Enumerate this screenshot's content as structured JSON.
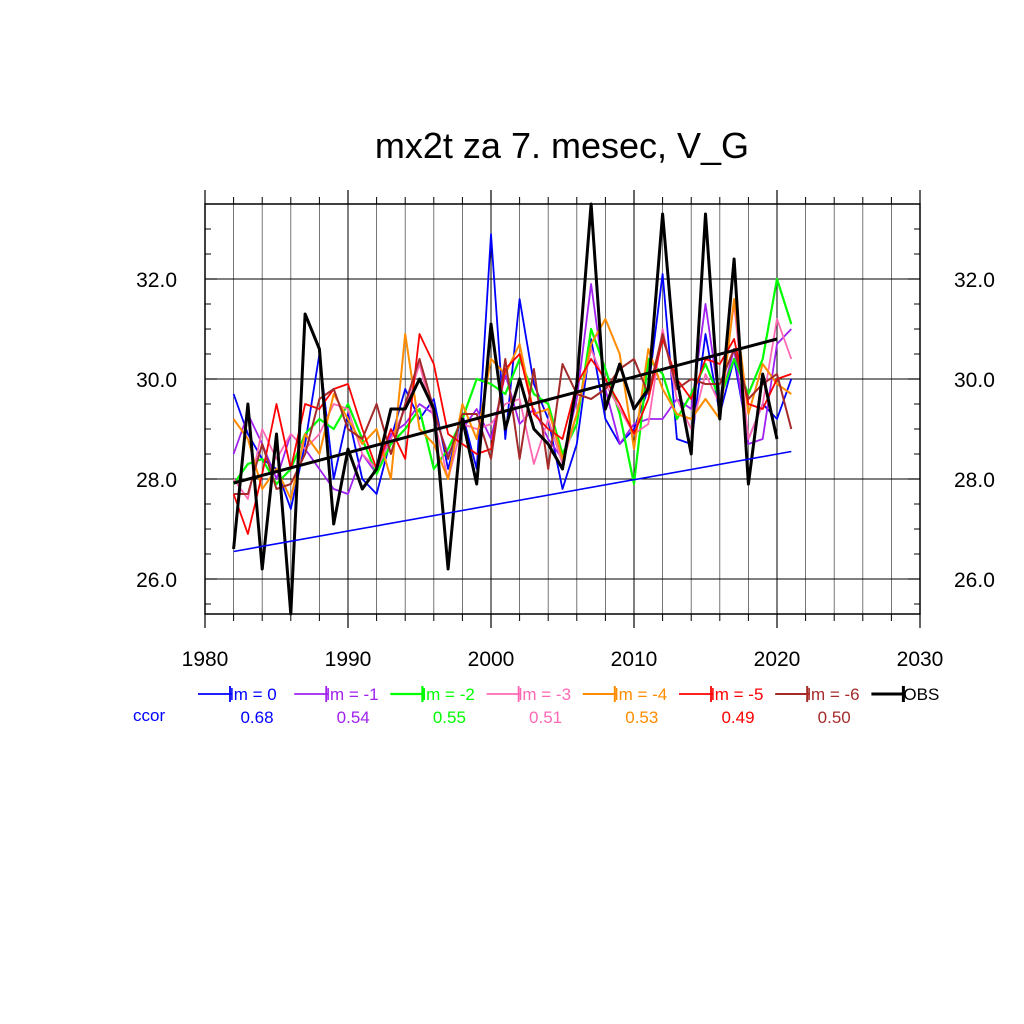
{
  "chart_data": {
    "type": "line",
    "title": "mx2t za 7. mesec, V_G",
    "xlabel": "",
    "ylabel": "",
    "xlim": [
      1980,
      2030
    ],
    "ylim": [
      25.3,
      33.5
    ],
    "x_ticks": [
      "1980",
      "1990",
      "2000",
      "2010",
      "2020",
      "2030"
    ],
    "y_ticks": [
      "26.0",
      "28.0",
      "30.0",
      "32.0"
    ],
    "grid": true,
    "legend_position": "bottom",
    "ccor_label": "ccor",
    "x": [
      1982,
      1983,
      1984,
      1985,
      1986,
      1987,
      1988,
      1989,
      1990,
      1991,
      1992,
      1993,
      1994,
      1995,
      1996,
      1997,
      1998,
      1999,
      2000,
      2001,
      2002,
      2003,
      2004,
      2005,
      2006,
      2007,
      2008,
      2009,
      2010,
      2011,
      2012,
      2013,
      2014,
      2015,
      2016,
      2017,
      2018,
      2019,
      2020,
      2021
    ],
    "series": [
      {
        "name": "lm = 0",
        "color": "#0000ff",
        "ccor": "0.68",
        "width": 1.8,
        "values": [
          29.7,
          28.9,
          28.4,
          28.2,
          27.4,
          28.7,
          30.5,
          28.0,
          29.3,
          28.0,
          27.7,
          28.8,
          29.8,
          29.2,
          29.6,
          28.2,
          29.3,
          28.2,
          32.9,
          28.8,
          31.6,
          29.9,
          29.2,
          27.8,
          28.7,
          30.8,
          29.2,
          28.7,
          29.0,
          29.8,
          32.1,
          28.8,
          28.7,
          30.9,
          29.3,
          30.4,
          28.8,
          29.5,
          29.2,
          30.0
        ]
      },
      {
        "name": "lm = -1",
        "color": "#a020f0",
        "ccor": "0.54",
        "width": 1.8,
        "values": [
          28.5,
          29.3,
          28.7,
          28.0,
          28.9,
          28.6,
          28.2,
          27.8,
          27.7,
          28.5,
          28.1,
          28.9,
          29.1,
          29.5,
          29.3,
          28.5,
          29.0,
          29.4,
          28.8,
          30.1,
          29.1,
          29.4,
          28.8,
          28.4,
          29.6,
          31.9,
          29.8,
          28.7,
          29.1,
          29.2,
          29.2,
          29.6,
          29.4,
          31.5,
          29.5,
          30.6,
          28.7,
          28.8,
          30.7,
          31.0
        ]
      },
      {
        "name": "lm = -2",
        "color": "#00ff00",
        "ccor": "0.55",
        "width": 2.2,
        "values": [
          27.9,
          28.3,
          28.4,
          27.9,
          28.2,
          28.9,
          29.2,
          29.0,
          29.5,
          28.8,
          28.1,
          28.7,
          29.0,
          29.4,
          28.2,
          28.6,
          29.2,
          30.0,
          29.9,
          29.7,
          30.4,
          29.7,
          29.5,
          28.5,
          29.1,
          31.0,
          30.2,
          29.3,
          27.9,
          30.4,
          30.1,
          29.2,
          29.7,
          30.3,
          29.6,
          30.4,
          29.7,
          30.4,
          32.0,
          31.1
        ]
      },
      {
        "name": "lm = -3",
        "color": "#ff69b4",
        "ccor": "0.51",
        "width": 1.8,
        "values": [
          28.0,
          27.6,
          29.0,
          28.4,
          28.9,
          28.6,
          28.9,
          29.5,
          29.4,
          28.5,
          28.2,
          28.8,
          29.4,
          30.3,
          29.2,
          28.0,
          29.1,
          29.0,
          29.1,
          29.5,
          29.6,
          28.3,
          29.2,
          28.3,
          29.3,
          30.6,
          29.9,
          29.4,
          28.9,
          29.1,
          31.0,
          29.6,
          29.0,
          30.1,
          29.5,
          31.5,
          28.8,
          29.5,
          31.2,
          30.4
        ]
      },
      {
        "name": "lm = -4",
        "color": "#ff8c00",
        "ccor": "0.53",
        "width": 2.0,
        "values": [
          29.2,
          28.8,
          27.8,
          28.2,
          27.6,
          28.9,
          28.5,
          29.7,
          29.2,
          28.7,
          29.0,
          28.0,
          30.9,
          29.0,
          28.7,
          28.0,
          29.5,
          28.8,
          30.4,
          30.1,
          30.7,
          29.3,
          29.4,
          28.4,
          29.3,
          30.7,
          31.2,
          30.5,
          28.6,
          30.6,
          29.8,
          29.3,
          29.2,
          29.6,
          29.2,
          31.6,
          29.3,
          30.3,
          29.9,
          29.7
        ]
      },
      {
        "name": "lm = -5",
        "color": "#ff0000",
        "ccor": "0.49",
        "width": 1.8,
        "values": [
          27.7,
          26.9,
          28.1,
          29.5,
          28.2,
          29.5,
          29.4,
          29.8,
          29.9,
          29.0,
          28.2,
          29.0,
          28.4,
          30.9,
          30.3,
          28.9,
          28.7,
          28.5,
          28.6,
          30.2,
          30.5,
          29.3,
          29.0,
          28.8,
          29.9,
          30.4,
          30.0,
          29.5,
          28.9,
          29.6,
          30.8,
          30.0,
          29.6,
          30.4,
          30.3,
          30.8,
          29.5,
          29.4,
          30.0,
          30.1
        ]
      },
      {
        "name": "lm = -6",
        "color": "#a52a2a",
        "ccor": "0.50",
        "width": 2.0,
        "values": [
          27.7,
          27.7,
          28.7,
          27.8,
          27.9,
          28.5,
          29.6,
          29.8,
          29.0,
          28.8,
          29.5,
          28.5,
          29.5,
          30.4,
          29.4,
          28.4,
          29.3,
          29.3,
          28.4,
          30.4,
          28.4,
          30.2,
          28.2,
          30.3,
          29.7,
          29.6,
          29.8,
          30.2,
          30.4,
          29.7,
          30.9,
          29.8,
          30.0,
          29.9,
          29.9,
          30.6,
          29.6,
          29.9,
          30.1,
          29.0
        ]
      },
      {
        "name": "OBS",
        "color": "#000000",
        "ccor": "",
        "width": 3.0,
        "values": [
          26.6,
          29.5,
          26.2,
          28.9,
          25.3,
          31.3,
          30.6,
          27.1,
          28.6,
          27.8,
          28.2,
          29.4,
          29.4,
          30.0,
          29.4,
          26.2,
          29.2,
          27.9,
          31.1,
          29.0,
          30.0,
          29.0,
          28.7,
          28.2,
          29.9,
          33.5,
          29.4,
          30.3,
          29.4,
          29.8,
          33.3,
          30.0,
          28.5,
          33.3,
          29.2,
          32.4,
          27.9,
          30.1,
          28.8,
          null
        ]
      }
    ],
    "trend_lines": [
      {
        "color": "#0000ff",
        "width": 1.6,
        "x": [
          1982,
          2021
        ],
        "values": [
          26.55,
          28.55
        ]
      },
      {
        "color": "#000000",
        "width": 3.0,
        "x": [
          1982,
          2020
        ],
        "values": [
          27.92,
          30.8
        ]
      }
    ]
  }
}
